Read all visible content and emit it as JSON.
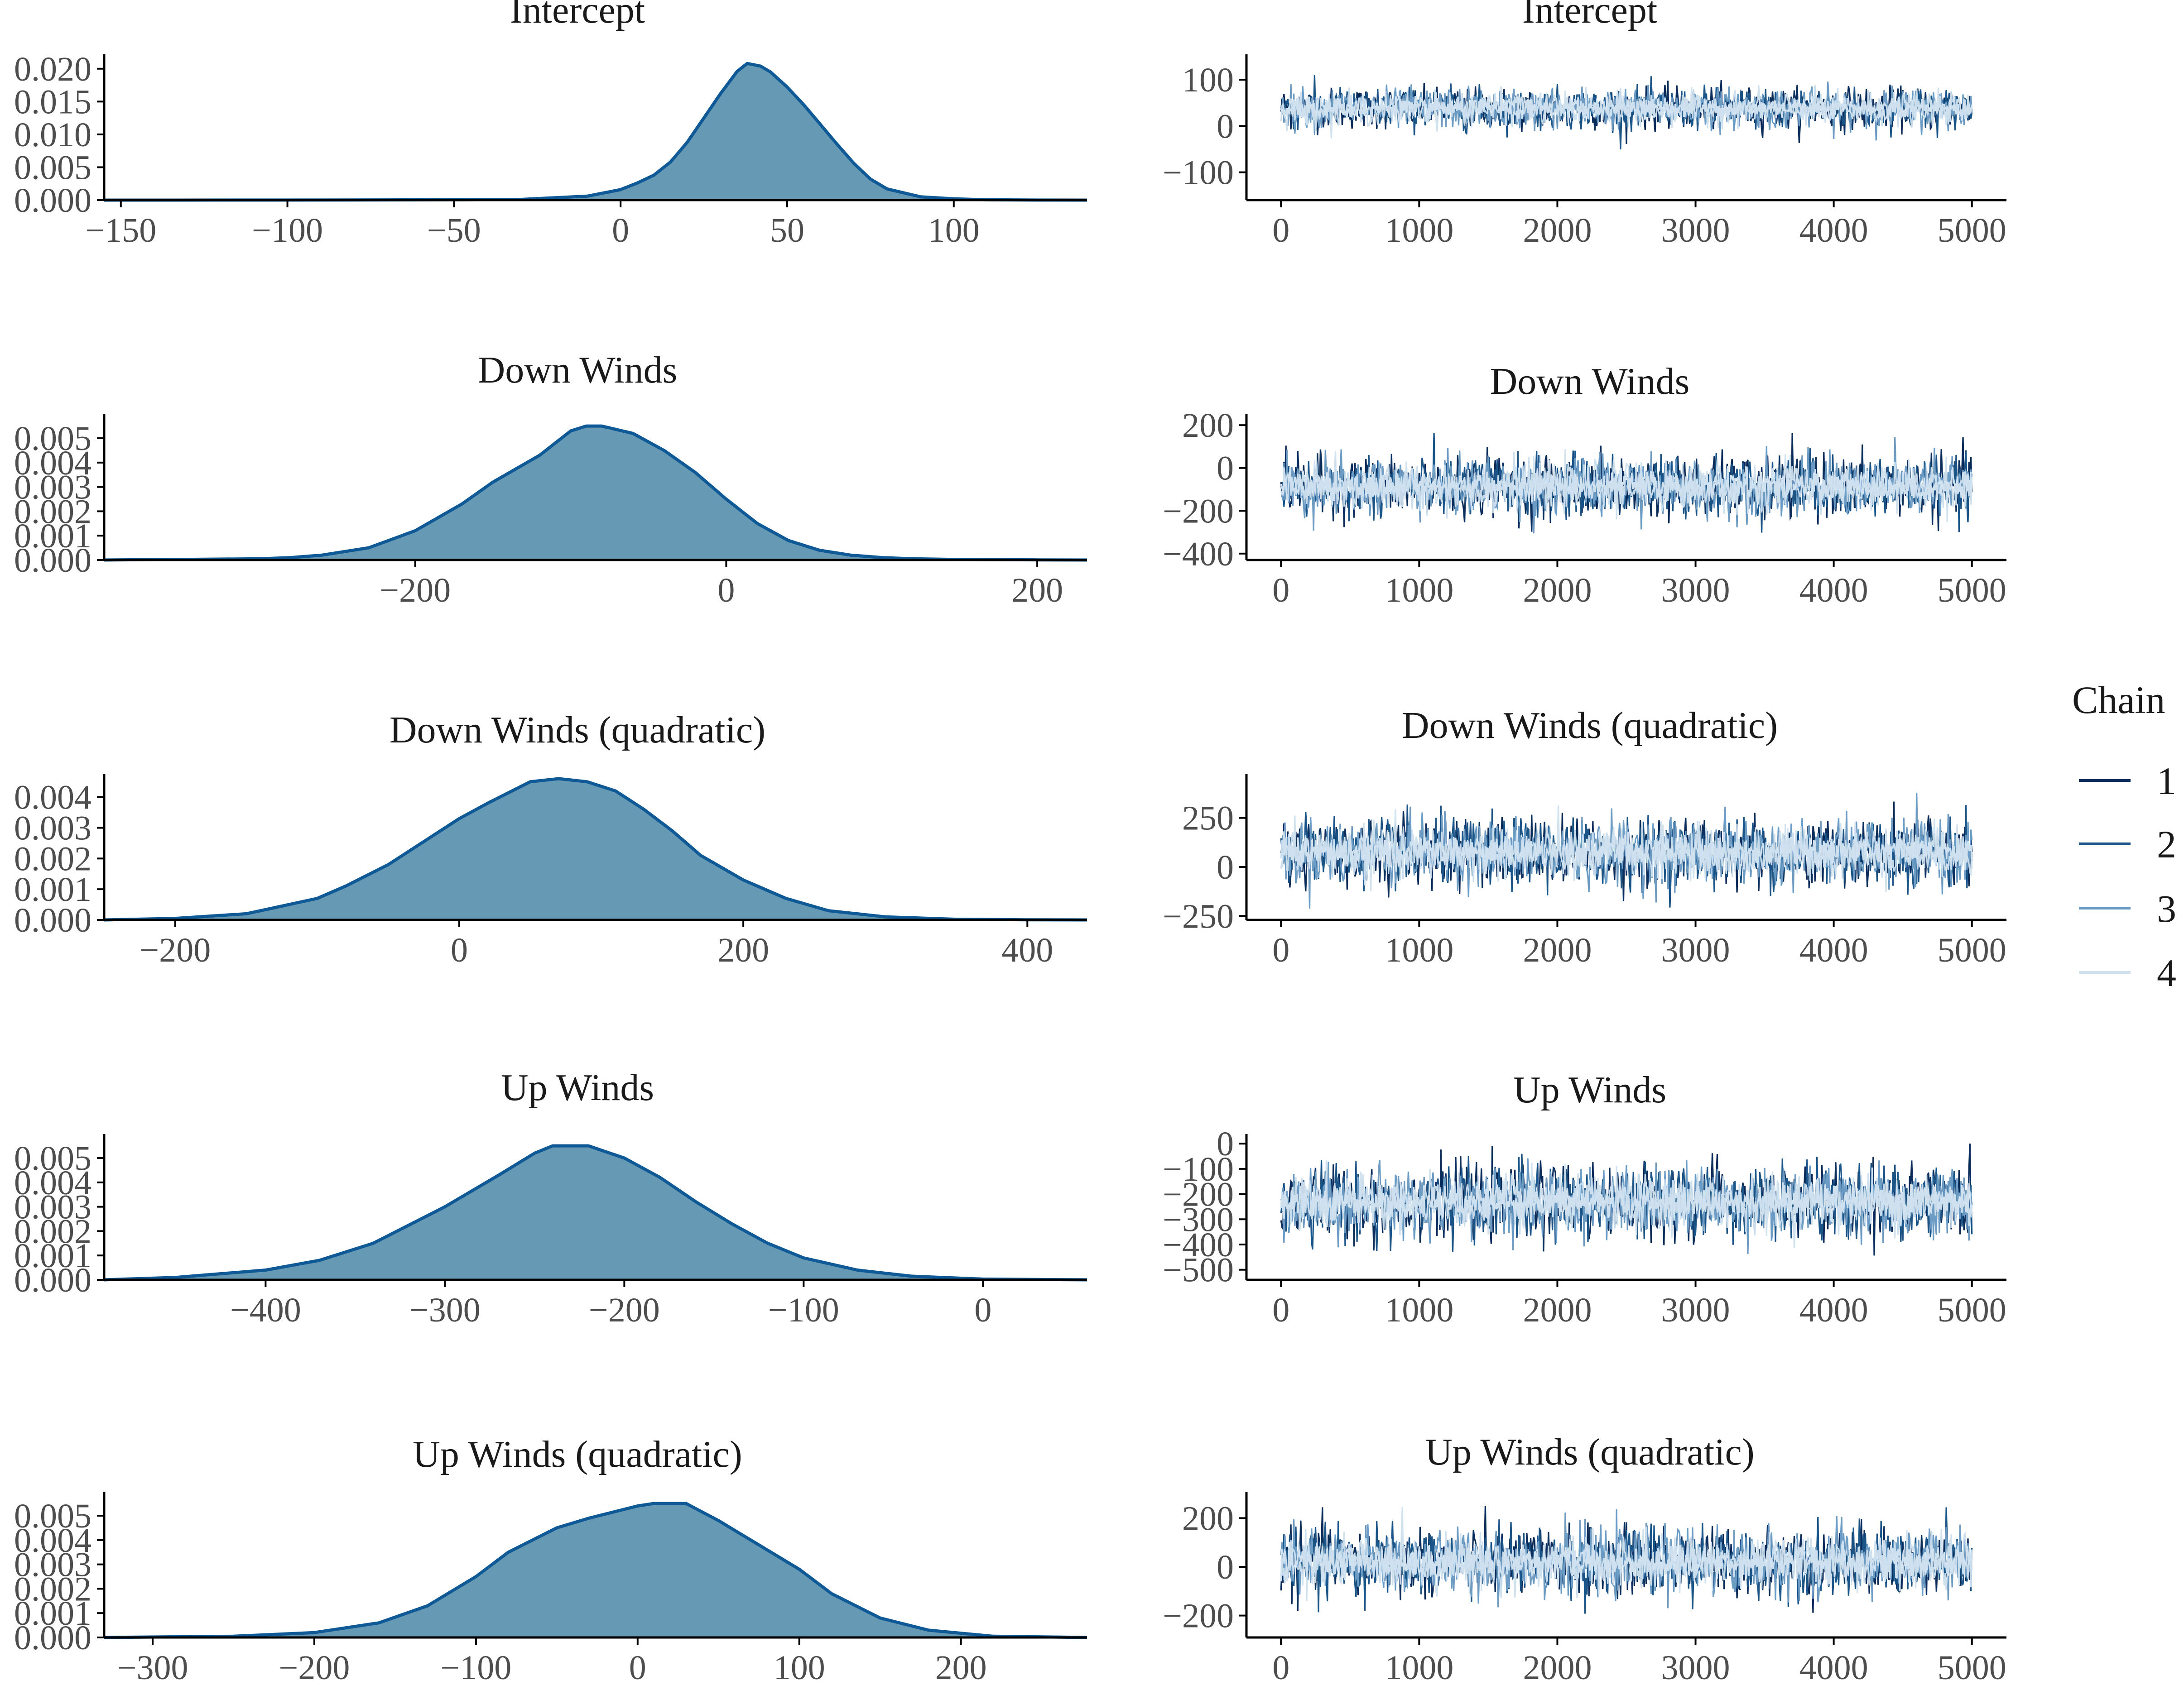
{
  "colors": {
    "density_fill": "#6699B4",
    "density_line": "#0F5A96",
    "axis": "#000000",
    "chain_1": "#0B2D5C",
    "chain_2": "#1B5487",
    "chain_3": "#6C9BC4",
    "chain_4": "#CFE0EE",
    "text": "#1a1a1a",
    "tick_text": "#4d4d4d"
  },
  "legend": {
    "title": "Chain",
    "items": [
      {
        "label": "1",
        "color": "#0B2D5C"
      },
      {
        "label": "2",
        "color": "#1B5487"
      },
      {
        "label": "3",
        "color": "#6C9BC4"
      },
      {
        "label": "4",
        "color": "#CFE0EE"
      }
    ]
  },
  "chart_data": [
    {
      "type": "area",
      "panel": "density",
      "title": "Intercept",
      "xlim": [
        -155,
        140
      ],
      "ylim": [
        0,
        0.0215
      ],
      "xticks": [
        -150,
        -100,
        -50,
        0,
        50,
        100
      ],
      "xtick_labels": [
        "−150",
        "−100",
        "−50",
        "0",
        "50",
        "100"
      ],
      "yticks": [
        0,
        0.005,
        0.01,
        0.015,
        0.02
      ],
      "ytick_labels": [
        "0.000",
        "0.005",
        "0.010",
        "0.015",
        "0.020"
      ],
      "x": [
        -155,
        -100,
        -50,
        -30,
        -10,
        0,
        5,
        10,
        15,
        20,
        25,
        30,
        35,
        38,
        42,
        45,
        50,
        55,
        60,
        65,
        70,
        75,
        80,
        90,
        100,
        110,
        125,
        140
      ],
      "y": [
        0,
        1e-05,
        5e-05,
        0.0001,
        0.0006,
        0.0016,
        0.0026,
        0.0038,
        0.0058,
        0.0088,
        0.0125,
        0.0162,
        0.0196,
        0.0208,
        0.0204,
        0.0195,
        0.0172,
        0.0145,
        0.0115,
        0.0085,
        0.0056,
        0.0032,
        0.0017,
        0.0005,
        0.0002,
        5e-05,
        1e-05,
        0
      ]
    },
    {
      "type": "line",
      "panel": "trace",
      "title": "Intercept",
      "xlim": [
        -250,
        5250
      ],
      "ylim": [
        -160,
        145
      ],
      "xticks": [
        0,
        1000,
        2000,
        3000,
        4000,
        5000
      ],
      "xtick_labels": [
        "0",
        "1000",
        "2000",
        "3000",
        "4000",
        "5000"
      ],
      "yticks": [
        -100,
        0,
        100
      ],
      "ytick_labels": [
        "−100",
        "0",
        "100"
      ],
      "trace_center": 38,
      "trace_sd": 22,
      "min_value": -155,
      "max_value": 140
    },
    {
      "type": "area",
      "panel": "density",
      "title": "Down Winds",
      "xlim": [
        -400,
        232
      ],
      "ylim": [
        0,
        0.0058
      ],
      "xticks": [
        -200,
        0,
        200
      ],
      "xtick_labels": [
        "−200",
        "0",
        "200"
      ],
      "yticks": [
        0,
        0.001,
        0.002,
        0.003,
        0.004,
        0.005
      ],
      "ytick_labels": [
        "0.000",
        "0.001",
        "0.002",
        "0.003",
        "0.004",
        "0.005"
      ],
      "x": [
        -400,
        -300,
        -280,
        -260,
        -230,
        -200,
        -170,
        -150,
        -120,
        -100,
        -90,
        -80,
        -60,
        -40,
        -20,
        0,
        20,
        40,
        60,
        80,
        100,
        120,
        150,
        200,
        232
      ],
      "y": [
        0,
        5e-05,
        0.0001,
        0.0002,
        0.0005,
        0.0012,
        0.0023,
        0.0032,
        0.0043,
        0.0053,
        0.0055,
        0.0055,
        0.0052,
        0.0045,
        0.0036,
        0.0025,
        0.0015,
        0.0008,
        0.0004,
        0.0002,
        0.0001,
        5e-05,
        2e-05,
        5e-06,
        0
      ]
    },
    {
      "type": "line",
      "panel": "trace",
      "title": "Down Winds",
      "xlim": [
        -250,
        5250
      ],
      "ylim": [
        -430,
        230
      ],
      "xticks": [
        0,
        1000,
        2000,
        3000,
        4000,
        5000
      ],
      "xtick_labels": [
        "0",
        "1000",
        "2000",
        "3000",
        "4000",
        "5000"
      ],
      "yticks": [
        -400,
        -200,
        0,
        200
      ],
      "ytick_labels": [
        "−400",
        "−200",
        "0",
        "200"
      ],
      "trace_center": -87,
      "trace_sd": 70,
      "min_value": -400,
      "max_value": 210
    },
    {
      "type": "area",
      "panel": "density",
      "title": "Down Winds (quadratic)",
      "xlim": [
        -250,
        442
      ],
      "ylim": [
        0,
        0.0046
      ],
      "xticks": [
        -200,
        0,
        200,
        400
      ],
      "xtick_labels": [
        "−200",
        "0",
        "200",
        "400"
      ],
      "yticks": [
        0,
        0.001,
        0.002,
        0.003,
        0.004
      ],
      "ytick_labels": [
        "0.000",
        "0.001",
        "0.002",
        "0.003",
        "0.004"
      ],
      "x": [
        -250,
        -200,
        -150,
        -130,
        -100,
        -80,
        -50,
        -20,
        0,
        20,
        50,
        70,
        90,
        110,
        130,
        150,
        170,
        200,
        230,
        260,
        300,
        350,
        400,
        442
      ],
      "y": [
        0,
        5e-05,
        0.0002,
        0.0004,
        0.0007,
        0.0011,
        0.0018,
        0.0027,
        0.0033,
        0.0038,
        0.0045,
        0.0046,
        0.0045,
        0.0042,
        0.0036,
        0.0029,
        0.0021,
        0.0013,
        0.0007,
        0.0003,
        0.0001,
        2e-05,
        5e-06,
        0
      ]
    },
    {
      "type": "line",
      "panel": "trace",
      "title": "Down Winds (quadratic)",
      "xlim": [
        -250,
        5250
      ],
      "ylim": [
        -270,
        450
      ],
      "xticks": [
        0,
        1000,
        2000,
        3000,
        4000,
        5000
      ],
      "xtick_labels": [
        "0",
        "1000",
        "2000",
        "3000",
        "4000",
        "5000"
      ],
      "yticks": [
        -250,
        0,
        250
      ],
      "ytick_labels": [
        "−250",
        "0",
        "250"
      ],
      "trace_center": 75,
      "trace_sd": 85,
      "min_value": -250,
      "max_value": 430
    },
    {
      "type": "area",
      "panel": "density",
      "title": "Up Winds",
      "xlim": [
        -490,
        58
      ],
      "ylim": [
        0,
        0.0058
      ],
      "xticks": [
        -400,
        -300,
        -200,
        -100,
        0
      ],
      "xtick_labels": [
        "−400",
        "−300",
        "−200",
        "−100",
        "0"
      ],
      "yticks": [
        0,
        0.001,
        0.002,
        0.003,
        0.004,
        0.005
      ],
      "ytick_labels": [
        "0.000",
        "0.001",
        "0.002",
        "0.003",
        "0.004",
        "0.005"
      ],
      "x": [
        -490,
        -450,
        -400,
        -370,
        -340,
        -300,
        -270,
        -250,
        -240,
        -220,
        -200,
        -180,
        -160,
        -140,
        -120,
        -100,
        -70,
        -40,
        0,
        58
      ],
      "y": [
        0,
        0.0001,
        0.0004,
        0.0008,
        0.0015,
        0.003,
        0.0043,
        0.0052,
        0.0055,
        0.0055,
        0.005,
        0.0042,
        0.0032,
        0.0023,
        0.0015,
        0.0009,
        0.0004,
        0.00015,
        3e-05,
        0
      ]
    },
    {
      "type": "line",
      "panel": "trace",
      "title": "Up Winds",
      "xlim": [
        -250,
        5250
      ],
      "ylim": [
        -540,
        20
      ],
      "xticks": [
        0,
        1000,
        2000,
        3000,
        4000,
        5000
      ],
      "xtick_labels": [
        "0",
        "1000",
        "2000",
        "3000",
        "4000",
        "5000"
      ],
      "yticks": [
        -500,
        -400,
        -300,
        -200,
        -100,
        0
      ],
      "ytick_labels": [
        "−500",
        "−400",
        "−300",
        "−200",
        "−100",
        "0"
      ],
      "trace_center": -232,
      "trace_sd": 70,
      "min_value": -500,
      "max_value": 0
    },
    {
      "type": "area",
      "panel": "density",
      "title": "Up Winds (quadratic)",
      "xlim": [
        -330,
        278
      ],
      "ylim": [
        0,
        0.0058
      ],
      "xticks": [
        -300,
        -200,
        -100,
        0,
        100,
        200
      ],
      "xtick_labels": [
        "−300",
        "−200",
        "−100",
        "0",
        "100",
        "200"
      ],
      "yticks": [
        0,
        0.001,
        0.002,
        0.003,
        0.004,
        0.005
      ],
      "ytick_labels": [
        "0.000",
        "0.001",
        "0.002",
        "0.003",
        "0.004",
        "0.005"
      ],
      "x": [
        -330,
        -250,
        -200,
        -160,
        -130,
        -100,
        -80,
        -50,
        -30,
        0,
        10,
        30,
        50,
        70,
        100,
        120,
        150,
        180,
        220,
        278
      ],
      "y": [
        0,
        5e-05,
        0.0002,
        0.0006,
        0.0013,
        0.0025,
        0.0035,
        0.0045,
        0.0049,
        0.0054,
        0.0055,
        0.0055,
        0.0048,
        0.004,
        0.0028,
        0.0018,
        0.0008,
        0.0003,
        5e-05,
        0
      ]
    },
    {
      "type": "line",
      "panel": "trace",
      "title": "Up Winds (quadratic)",
      "xlim": [
        -250,
        5250
      ],
      "ylim": [
        -290,
        290
      ],
      "xticks": [
        0,
        1000,
        2000,
        3000,
        4000,
        5000
      ],
      "xtick_labels": [
        "0",
        "1000",
        "2000",
        "3000",
        "4000",
        "5000"
      ],
      "yticks": [
        -200,
        0,
        200
      ],
      "ytick_labels": [
        "−200",
        "0",
        "200"
      ],
      "trace_center": 20,
      "trace_sd": 68,
      "min_value": -280,
      "max_value": 250
    }
  ]
}
